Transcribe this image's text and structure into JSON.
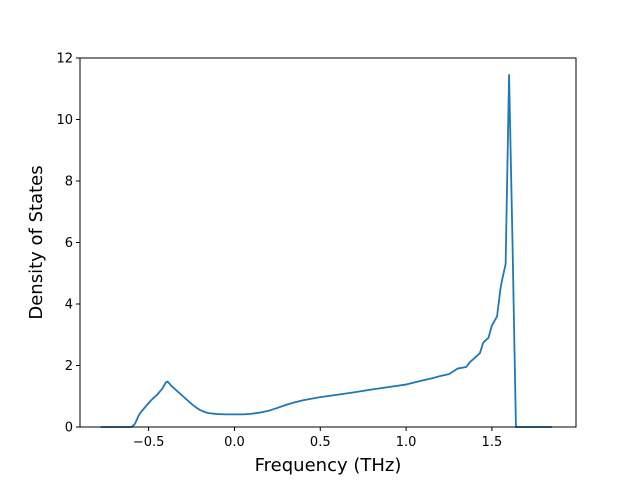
{
  "chart_data": {
    "type": "line",
    "title": "",
    "xlabel": "Frequency (THz)",
    "ylabel": "Density of States",
    "xlim": [
      -0.9,
      1.99
    ],
    "ylim": [
      0,
      12
    ],
    "xticks": [
      -0.5,
      0.0,
      0.5,
      1.0,
      1.5
    ],
    "xtick_labels": [
      "−0.5",
      "0.0",
      "0.5",
      "1.0",
      "1.5"
    ],
    "yticks": [
      0,
      2,
      4,
      6,
      8,
      10,
      12
    ],
    "ytick_labels": [
      "0",
      "2",
      "4",
      "6",
      "8",
      "10",
      "12"
    ],
    "grid": false,
    "legend": "none",
    "series": [
      {
        "color": "#1f77b4",
        "x": [
          -0.78,
          -0.6,
          -0.58,
          -0.56,
          -0.55,
          -0.52,
          -0.5,
          -0.48,
          -0.45,
          -0.42,
          -0.4,
          -0.39,
          -0.38,
          -0.37,
          -0.36,
          -0.34,
          -0.32,
          -0.3,
          -0.27,
          -0.25,
          -0.22,
          -0.2,
          -0.17,
          -0.15,
          -0.1,
          -0.05,
          0.0,
          0.05,
          0.1,
          0.15,
          0.2,
          0.25,
          0.3,
          0.35,
          0.4,
          0.5,
          0.6,
          0.7,
          0.8,
          0.9,
          1.0,
          1.05,
          1.1,
          1.15,
          1.2,
          1.25,
          1.3,
          1.35,
          1.37,
          1.4,
          1.43,
          1.45,
          1.48,
          1.5,
          1.52,
          1.53,
          1.55,
          1.56,
          1.58,
          1.6,
          1.62,
          1.64,
          1.66,
          1.7,
          1.85
        ],
        "y": [
          0.0,
          0.0,
          0.1,
          0.35,
          0.45,
          0.65,
          0.78,
          0.9,
          1.05,
          1.25,
          1.45,
          1.48,
          1.42,
          1.35,
          1.3,
          1.2,
          1.1,
          1.0,
          0.85,
          0.75,
          0.62,
          0.55,
          0.48,
          0.45,
          0.42,
          0.41,
          0.41,
          0.41,
          0.43,
          0.47,
          0.53,
          0.62,
          0.72,
          0.8,
          0.87,
          0.97,
          1.05,
          1.13,
          1.22,
          1.3,
          1.38,
          1.45,
          1.52,
          1.58,
          1.66,
          1.72,
          1.9,
          1.95,
          2.1,
          2.25,
          2.4,
          2.75,
          2.9,
          3.3,
          3.5,
          3.6,
          4.5,
          4.8,
          5.3,
          11.45,
          6.0,
          0.0,
          0.0,
          0.0,
          0.0
        ]
      }
    ]
  }
}
